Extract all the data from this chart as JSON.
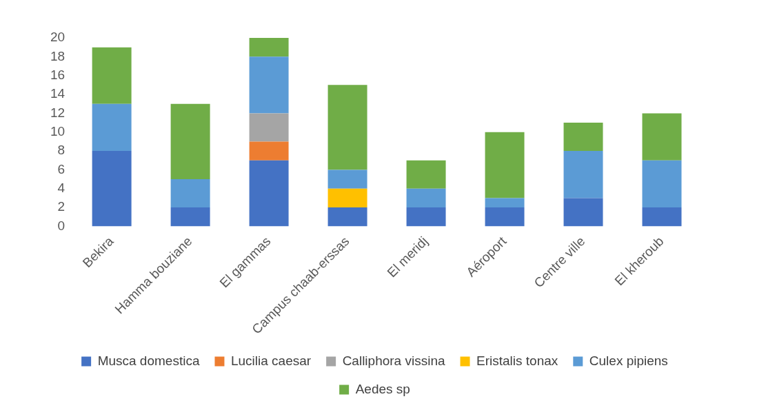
{
  "chart_data": {
    "type": "bar",
    "stacked": true,
    "categories": [
      "Bekira",
      "Hamma bouziane",
      "El gammas",
      "Campus chaab-erssas",
      "El meridj",
      "Aéroport",
      "Centre ville",
      "El kheroub"
    ],
    "series": [
      {
        "name": "Musca domestica",
        "color": "#4472c4",
        "values": [
          8,
          2,
          7,
          2,
          2,
          2,
          3,
          2
        ]
      },
      {
        "name": "Lucilia caesar",
        "color": "#ed7d31",
        "values": [
          0,
          0,
          2,
          0,
          0,
          0,
          0,
          0
        ]
      },
      {
        "name": "Calliphora vissina",
        "color": "#a5a5a5",
        "values": [
          0,
          0,
          3,
          0,
          0,
          0,
          0,
          0
        ]
      },
      {
        "name": "Eristalis tonax",
        "color": "#ffc000",
        "values": [
          0,
          0,
          0,
          2,
          0,
          0,
          0,
          0
        ]
      },
      {
        "name": "Culex pipiens",
        "color": "#5b9bd5",
        "values": [
          5,
          3,
          6,
          2,
          2,
          1,
          5,
          5
        ]
      },
      {
        "name": "Aedes sp",
        "color": "#70ad47",
        "values": [
          6,
          8,
          2,
          9,
          3,
          7,
          3,
          5
        ]
      }
    ],
    "ylim": [
      0,
      20
    ],
    "yticks": [
      0,
      2,
      4,
      6,
      8,
      10,
      12,
      14,
      16,
      18,
      20
    ],
    "grid": false,
    "legend": "bottom"
  }
}
